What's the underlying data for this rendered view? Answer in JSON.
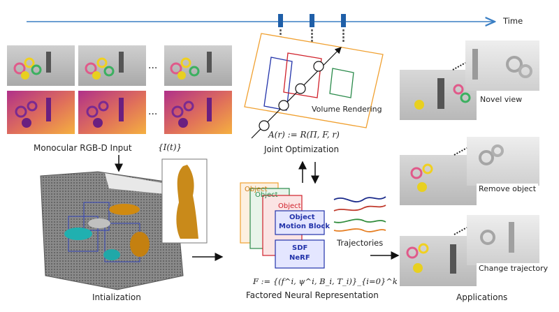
{
  "timeline": {
    "label": "Time"
  },
  "input": {
    "label": "Monocular RGB-D Input",
    "math": "{I(t)}",
    "ellipsis": "..."
  },
  "init": {
    "label": "Intialization"
  },
  "volume": {
    "label": "Volume Rendering"
  },
  "joint": {
    "math": "A(r) := R(Π, F, r)",
    "label": "Joint Optimization"
  },
  "factored": {
    "card_object": "Object",
    "card_motion_block": "Motion Block",
    "card_sdf": "SDF",
    "card_nerf": "NeRF",
    "math": "F := {(f^i, ψ^i, B_i, T_i)}_{i=0}^k",
    "label": "Factored Neural Representation"
  },
  "trajectories": {
    "label": "Trajectories",
    "colors": [
      "#1a2a8a",
      "#c0392b",
      "#2e8b3a",
      "#e67e22"
    ]
  },
  "applications": {
    "title": "Applications",
    "items": [
      {
        "label": "Novel view"
      },
      {
        "label": "Remove object"
      },
      {
        "label": "Change trajectory"
      }
    ]
  },
  "colors": {
    "timeline": "#3a7fc4",
    "tick": "#1f5fa8",
    "orange_frame": "#f0a030",
    "blue": "#2233aa",
    "red": "#d0202a",
    "green": "#2a8a4a"
  }
}
